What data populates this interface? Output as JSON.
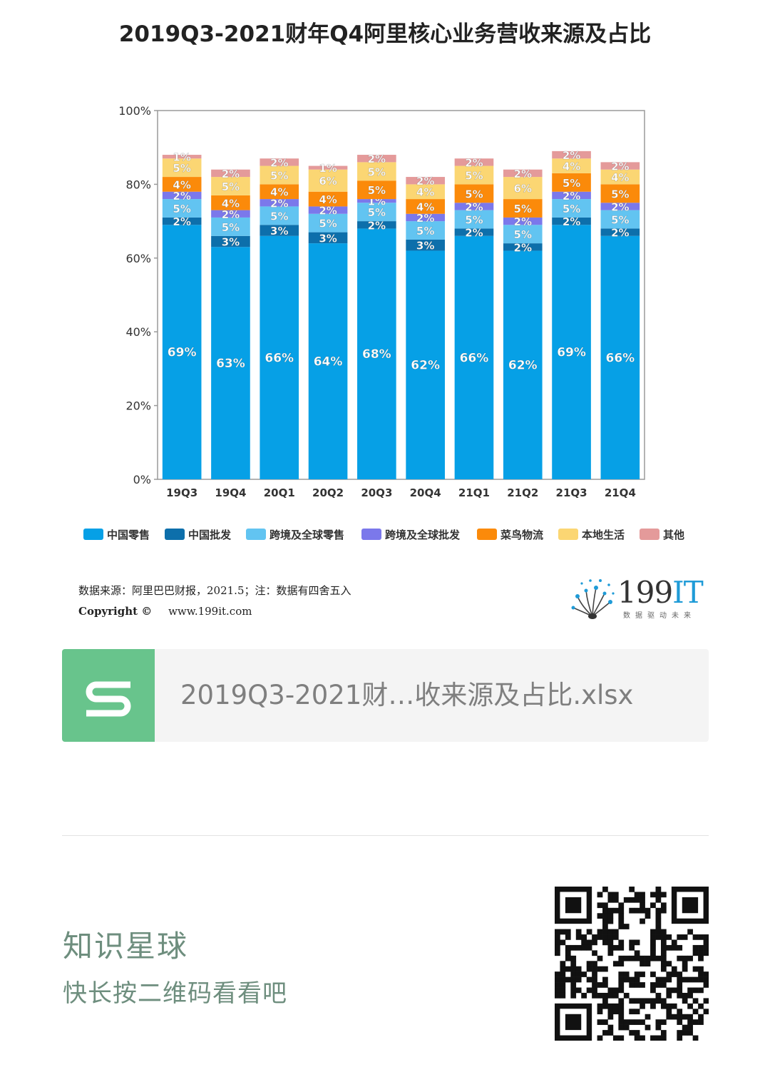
{
  "chart_data": {
    "type": "bar",
    "stacked": true,
    "title": "2019Q3-2021财年Q4阿里核心业务营收来源及占比",
    "categories": [
      "19Q3",
      "19Q4",
      "20Q1",
      "20Q2",
      "20Q3",
      "20Q4",
      "21Q1",
      "21Q2",
      "21Q3",
      "21Q4"
    ],
    "ylim": [
      0,
      100
    ],
    "yticks": [
      "0%",
      "20%",
      "40%",
      "60%",
      "80%",
      "100%"
    ],
    "legend_position": "bottom",
    "series": [
      {
        "name": "中国零售",
        "color": "#06a0e6",
        "values": [
          69,
          63,
          66,
          64,
          68,
          62,
          66,
          62,
          69,
          66
        ]
      },
      {
        "name": "中国批发",
        "color": "#0d6fab",
        "values": [
          2,
          3,
          3,
          3,
          2,
          3,
          2,
          2,
          2,
          2
        ]
      },
      {
        "name": "跨境及全球零售",
        "color": "#62c4f1",
        "values": [
          5,
          5,
          5,
          5,
          5,
          5,
          5,
          5,
          5,
          5
        ]
      },
      {
        "name": "跨境及全球批发",
        "color": "#7b78eb",
        "values": [
          2,
          2,
          2,
          2,
          1,
          2,
          2,
          2,
          2,
          2
        ]
      },
      {
        "name": "菜鸟物流",
        "color": "#fb8a0a",
        "values": [
          4,
          4,
          4,
          4,
          5,
          4,
          5,
          5,
          5,
          5
        ]
      },
      {
        "name": "本地生活",
        "color": "#fbd673",
        "values": [
          5,
          5,
          5,
          6,
          5,
          4,
          5,
          6,
          4,
          4
        ]
      },
      {
        "name": "其他",
        "color": "#e49a9a",
        "values": [
          1,
          2,
          2,
          1,
          2,
          2,
          2,
          2,
          2,
          2
        ]
      }
    ]
  },
  "source": {
    "label": "数据来源：阿里巴巴财报，2021.5；注：数据有四舍五入",
    "copyright": "Copyright ©",
    "website": "www.199it.com"
  },
  "logo": {
    "text_main": "199",
    "text_accent": "IT",
    "tagline": "数据驱动未来"
  },
  "file": {
    "name": "2019Q3-2021财…收来源及占比.xlsx",
    "icon": "spreadsheet-s-icon"
  },
  "promo": {
    "title": "知识星球",
    "subtitle": "快长按二维码看看吧",
    "qr_icon": "qr-code-icon"
  }
}
